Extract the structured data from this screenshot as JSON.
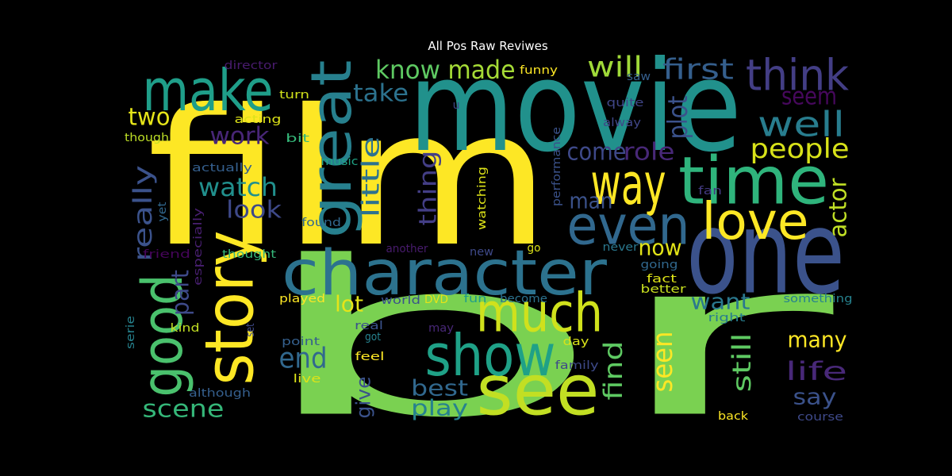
{
  "title": "All Pos Raw Reviwes",
  "words": [
    "film",
    "br",
    "movie",
    "one",
    "character",
    "time",
    "way",
    "make",
    "story",
    "great",
    "good",
    "see",
    "show",
    "much",
    "even",
    "love",
    "think",
    "well",
    "people",
    "first",
    "will",
    "seem",
    "plot",
    "know",
    "made",
    "take",
    "two",
    "work",
    "watch",
    "look",
    "really",
    "part",
    "little",
    "thing",
    "come",
    "role",
    "man",
    "now",
    "actor",
    "want",
    "lot",
    "end",
    "scene",
    "give",
    "best",
    "play",
    "find",
    "seen",
    "still",
    "many",
    "life",
    "say",
    "back",
    "course",
    "something",
    "right",
    "day",
    "family",
    "better",
    "fact",
    "going",
    "never",
    "fan",
    "alway",
    "quite",
    "saw",
    "funny",
    "director",
    "turn",
    "u",
    "acting",
    "bit",
    "though",
    "actually",
    "music",
    "performance",
    "watching",
    "yet",
    "especially",
    "found",
    "friend",
    "thought",
    "another",
    "new",
    "go",
    "played",
    "world",
    "DVD",
    "fun",
    "become",
    "serie",
    "kind",
    "set",
    "real",
    "got",
    "may",
    "point",
    "feel",
    "live",
    "although"
  ]
}
